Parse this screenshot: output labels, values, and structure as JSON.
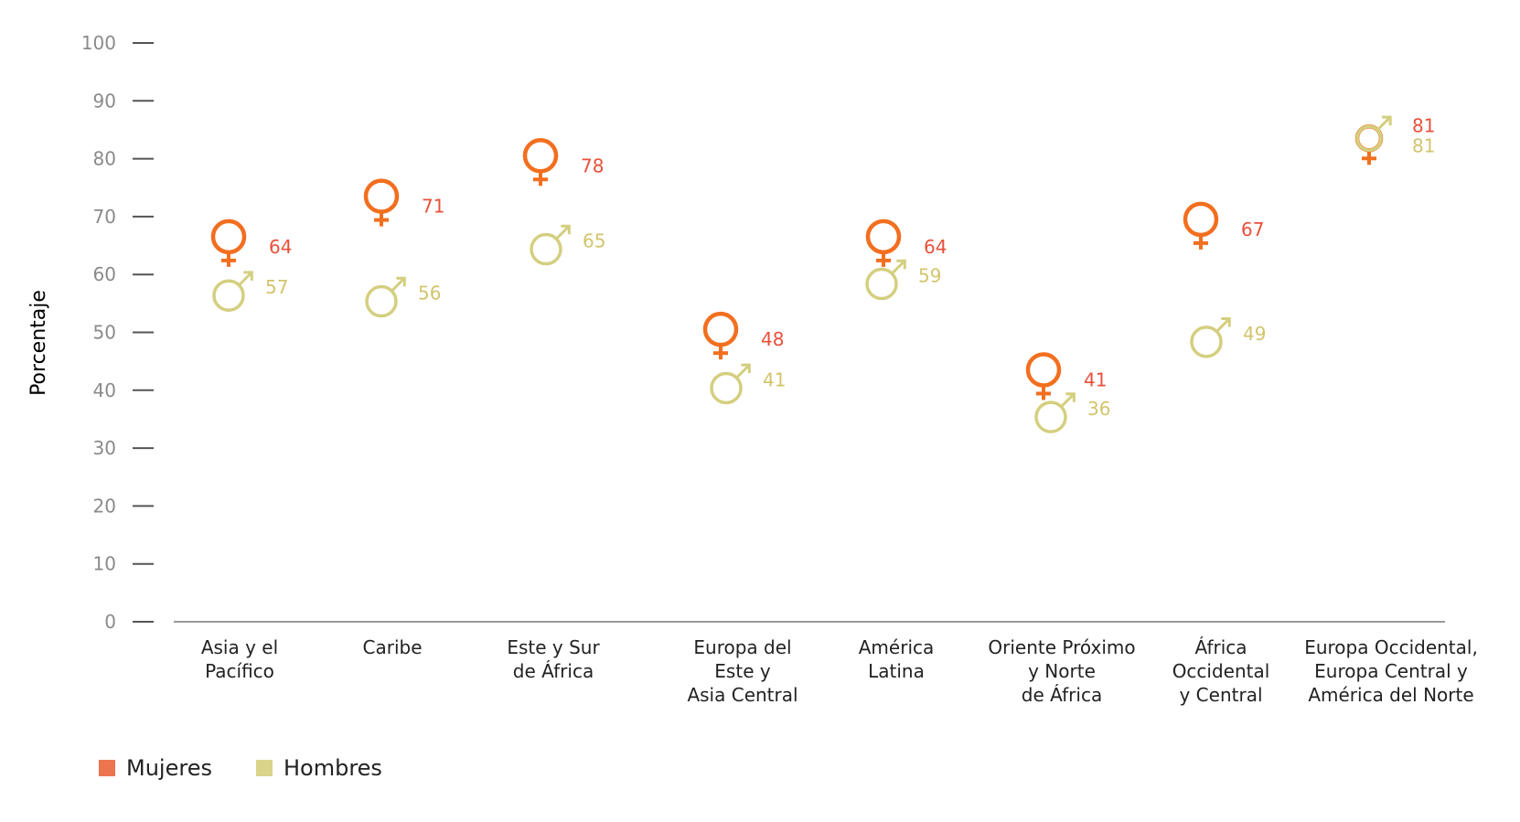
{
  "colors": {
    "mujeres": "#f26f1f",
    "hombres": "#d4cf7f",
    "mujeres_label": "#e8503a",
    "hombres_label": "#d2c46c",
    "legend_mujeres": "#ec7550",
    "legend_hombres": "#d9d48a",
    "axis": "#555555"
  },
  "chart_data": {
    "type": "scatter",
    "ylabel": "Porcentaje",
    "xlabel": "",
    "ylim": [
      0,
      100
    ],
    "yticks": [
      "0",
      "10",
      "20",
      "30",
      "40",
      "50",
      "60",
      "70",
      "80",
      "90",
      "100"
    ],
    "categories": [
      [
        "Asia y el",
        "Pacífico"
      ],
      [
        "Caribe"
      ],
      [
        "Este y Sur",
        "de África"
      ],
      [
        "Europa del",
        "Este y",
        "Asia Central"
      ],
      [
        "América",
        "Latina"
      ],
      [
        "Oriente Próximo",
        "y Norte",
        "de África"
      ],
      [
        "África",
        "Occidental",
        "y Central"
      ],
      [
        "Europa Occidental,",
        "Europa Central y",
        "América del Norte"
      ]
    ],
    "series": [
      {
        "name": "Mujeres",
        "symbol": "female-symbol",
        "values": [
          64,
          71,
          78,
          48,
          64,
          41,
          67,
          81
        ]
      },
      {
        "name": "Hombres",
        "symbol": "male-symbol",
        "values": [
          57,
          56,
          65,
          41,
          59,
          36,
          49,
          81
        ]
      }
    ],
    "grid": false,
    "legend_position": "bottom-left"
  },
  "legend": {
    "items": [
      {
        "label": "Mujeres"
      },
      {
        "label": "Hombres"
      }
    ]
  }
}
